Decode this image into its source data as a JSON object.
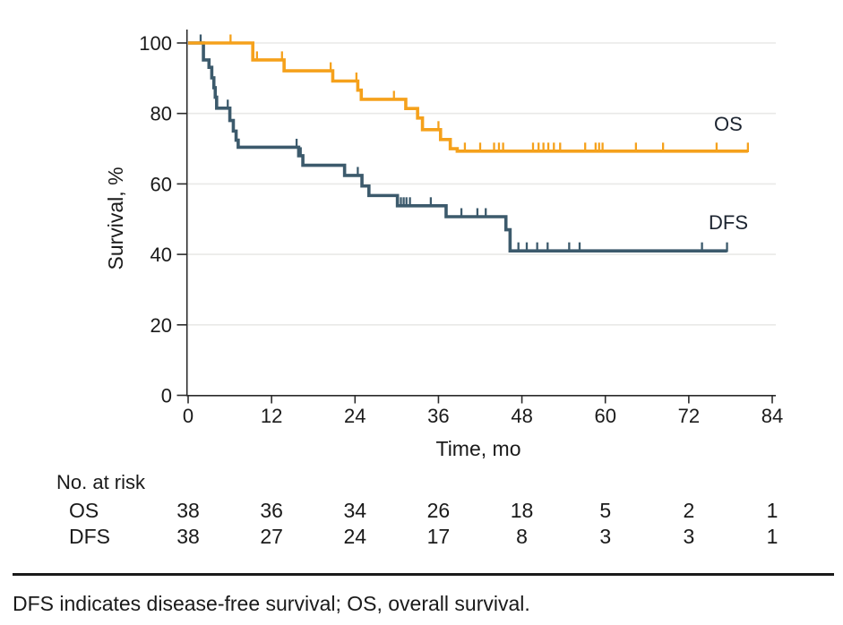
{
  "figure": {
    "colors": {
      "os": "#F5A11B",
      "dfs": "#3C5A6C",
      "grid": "#E9E9E7",
      "axis": "#2b2b2b",
      "text": "#1a1a1a",
      "divider": "#1a1a1a"
    }
  },
  "chart_data": {
    "type": "line",
    "subtype": "kaplan_meier_step",
    "title": "",
    "xlabel": "Time, mo",
    "ylabel": "Survival, %",
    "xlim": [
      0,
      84
    ],
    "ylim": [
      0,
      100
    ],
    "x_ticks": [
      0,
      12,
      24,
      36,
      48,
      60,
      72,
      84
    ],
    "y_ticks": [
      100,
      80,
      60,
      40,
      20,
      0
    ],
    "grid_values": [
      100,
      80,
      60,
      40,
      20
    ],
    "grid": "horizontal-only",
    "legend_position": "inline-right-of-curves",
    "series": [
      {
        "name": "OS",
        "color": "#F5A11B",
        "start_value": 100,
        "end_time": 80.5,
        "drops": [
          [
            9.3,
            95.2
          ],
          [
            13.8,
            92.1
          ],
          [
            20.8,
            89.2
          ],
          [
            24.4,
            86.6
          ],
          [
            24.9,
            84.0
          ],
          [
            31.3,
            81.4
          ],
          [
            33.0,
            78.7
          ],
          [
            33.7,
            75.4
          ],
          [
            36.3,
            72.6
          ],
          [
            37.7,
            70.0
          ],
          [
            38.7,
            69.3
          ]
        ],
        "censors": [
          [
            6.1,
            100
          ],
          [
            9.9,
            95.2
          ],
          [
            13.5,
            95.2
          ],
          [
            20.5,
            92.1
          ],
          [
            24.2,
            89.2
          ],
          [
            29.6,
            84.0
          ],
          [
            36.0,
            75.4
          ],
          [
            39.8,
            69.3
          ],
          [
            42.0,
            69.3
          ],
          [
            44.0,
            69.3
          ],
          [
            44.7,
            69.3
          ],
          [
            45.3,
            69.3
          ],
          [
            49.6,
            69.3
          ],
          [
            50.4,
            69.3
          ],
          [
            51.1,
            69.3
          ],
          [
            51.8,
            69.3
          ],
          [
            52.6,
            69.3
          ],
          [
            53.5,
            69.3
          ],
          [
            57.1,
            69.3
          ],
          [
            58.6,
            69.3
          ],
          [
            59.1,
            69.3
          ],
          [
            59.6,
            69.3
          ],
          [
            64.4,
            69.3
          ],
          [
            68.3,
            69.3
          ],
          [
            76.0,
            69.3
          ],
          [
            80.5,
            69.3
          ]
        ]
      },
      {
        "name": "DFS",
        "color": "#3C5A6C",
        "start_value": 100,
        "end_time": 77.5,
        "drops": [
          [
            2.2,
            95.2
          ],
          [
            3.0,
            93.1
          ],
          [
            3.4,
            90.1
          ],
          [
            3.7,
            87.3
          ],
          [
            3.9,
            84.6
          ],
          [
            4.1,
            81.5
          ],
          [
            6.0,
            78.0
          ],
          [
            6.5,
            75.0
          ],
          [
            6.9,
            72.4
          ],
          [
            7.2,
            70.4
          ],
          [
            15.9,
            68.0
          ],
          [
            16.5,
            65.3
          ],
          [
            22.5,
            62.4
          ],
          [
            25.0,
            59.4
          ],
          [
            26.0,
            56.7
          ],
          [
            30.1,
            53.8
          ],
          [
            37.1,
            50.7
          ],
          [
            45.7,
            47.0
          ],
          [
            46.3,
            41.0
          ]
        ],
        "censors": [
          [
            1.8,
            100
          ],
          [
            5.7,
            81.5
          ],
          [
            15.6,
            70.4
          ],
          [
            16.2,
            68.0
          ],
          [
            24.4,
            62.4
          ],
          [
            30.6,
            53.8
          ],
          [
            31.0,
            53.8
          ],
          [
            31.4,
            53.8
          ],
          [
            31.9,
            53.8
          ],
          [
            34.9,
            53.8
          ],
          [
            39.3,
            50.7
          ],
          [
            41.6,
            50.7
          ],
          [
            42.8,
            50.7
          ],
          [
            47.5,
            41.0
          ],
          [
            48.7,
            41.0
          ],
          [
            50.2,
            41.0
          ],
          [
            51.7,
            41.0
          ],
          [
            54.8,
            41.0
          ],
          [
            56.3,
            41.0
          ],
          [
            73.9,
            41.0
          ],
          [
            77.5,
            41.0
          ]
        ]
      }
    ]
  },
  "at_risk": {
    "header": "No. at risk",
    "time_points": [
      0,
      12,
      24,
      36,
      48,
      60,
      72,
      84
    ],
    "rows": [
      {
        "label": "OS",
        "counts": [
          "38",
          "36",
          "34",
          "26",
          "18",
          "5",
          "2",
          "1"
        ]
      },
      {
        "label": "DFS",
        "counts": [
          "38",
          "27",
          "24",
          "17",
          "8",
          "3",
          "3",
          "1"
        ]
      }
    ]
  },
  "footnote": {
    "text": "DFS indicates disease-free survival; OS, overall survival."
  }
}
